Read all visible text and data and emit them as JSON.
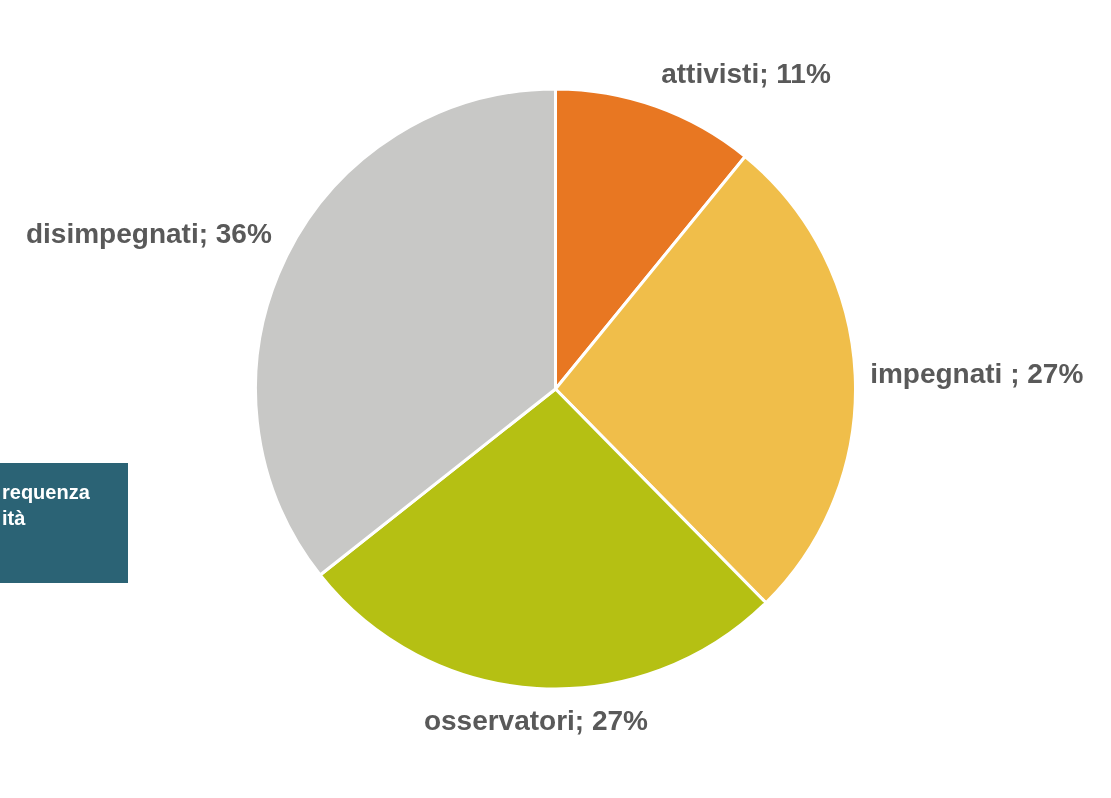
{
  "chart_data": {
    "type": "pie",
    "categories": [
      "attivisti",
      "impegnati ",
      "osservatori",
      "disimpegnati"
    ],
    "values": [
      11,
      27,
      27,
      36
    ],
    "colors": [
      "#e87722",
      "#f0be4a",
      "#b5c013",
      "#c8c8c6"
    ],
    "value_labels": [
      "11%",
      "27%",
      "27%",
      "36%"
    ],
    "legend": false,
    "annotations": [
      "requenza ità"
    ]
  }
}
